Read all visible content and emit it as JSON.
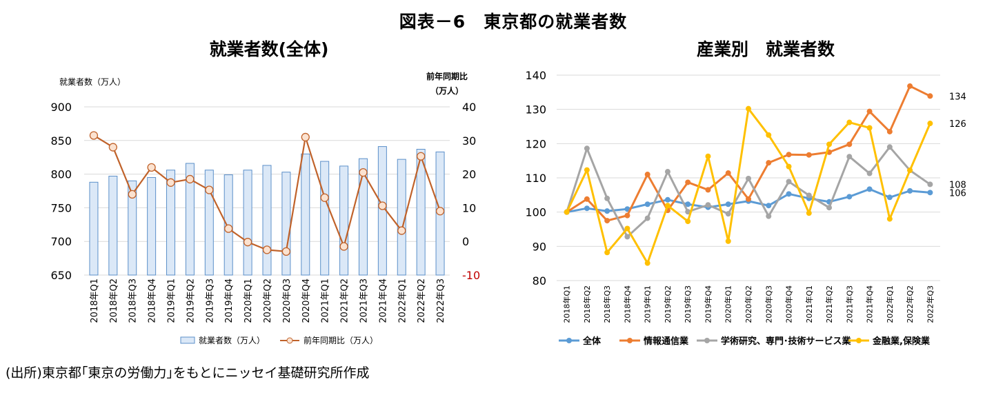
{
  "figure_title": "図表－6　東京都の就業者数",
  "source_note": "(出所)東京都｢東京の労働力｣をもとにニッセイ基礎研究所作成",
  "colors": {
    "bar_fill": "#dbe8f7",
    "bar_stroke": "#5b8fc9",
    "yoy_line": "#c0622a",
    "marker_fill": "#fbe2d0",
    "neg_tick": "#c00000",
    "zentai": "#5b9bd5",
    "joho": "#ed7d31",
    "gakujutsu": "#a5a5a5",
    "kinyu": "#ffc000"
  },
  "chart_data": [
    {
      "type": "bar",
      "title": "就業者数(全体)",
      "ylabel": "就業者数（万人）",
      "y2label_line1": "前年同期比",
      "y2label_line2": "（万人）",
      "categories": [
        "2018年Q1",
        "2018年Q2",
        "2018年Q3",
        "2018年Q4",
        "2019年Q1",
        "2019年Q2",
        "2019年Q3",
        "2019年Q4",
        "2020年Q1",
        "2020年Q2",
        "2020年Q3",
        "2020年Q4",
        "2021年Q1",
        "2021年Q2",
        "2021年Q3",
        "2021年Q4",
        "2022年Q1",
        "2022年Q2",
        "2022年Q3"
      ],
      "ylim": [
        650,
        900
      ],
      "yticks": [
        "650",
        "700",
        "750",
        "800",
        "850",
        "900"
      ],
      "y2lim": [
        -10,
        40
      ],
      "y2ticks": [
        "-10",
        "0",
        "10",
        "20",
        "30",
        "40"
      ],
      "grid": true,
      "legend": "bottom",
      "series": [
        {
          "name": "就業者数（万人）",
          "kind": "bar",
          "axis": "left",
          "values": [
            788,
            797,
            790,
            795,
            806,
            816,
            806,
            799,
            806,
            813,
            803,
            830,
            819,
            812,
            823,
            841,
            822,
            837,
            833
          ]
        },
        {
          "name": "前年同期比（万人）",
          "kind": "line",
          "axis": "right",
          "values": [
            31.5,
            28,
            14,
            22,
            17.5,
            18.5,
            15.3,
            3.8,
            -0.2,
            -2.5,
            -3,
            31,
            13,
            -1.5,
            20.5,
            10.6,
            3.2,
            25.3,
            9
          ]
        }
      ]
    },
    {
      "type": "line",
      "title": "産業別　就業者数",
      "categories": [
        "2018年Q1",
        "2018年Q2",
        "2018年Q3",
        "2018年Q4",
        "2019年Q1",
        "2019年Q2",
        "2019年Q3",
        "2019年Q4",
        "2020年Q1",
        "2020年Q2",
        "2020年Q3",
        "2020年Q4",
        "2021年Q1",
        "2021年Q2",
        "2021年Q3",
        "2021年Q4",
        "2022年Q1",
        "2022年Q2",
        "2022年Q3"
      ],
      "ylim": [
        80,
        140
      ],
      "yticks": [
        "80",
        "90",
        "100",
        "110",
        "120",
        "130",
        "140"
      ],
      "grid": true,
      "legend": "bottom",
      "end_labels": [
        "106",
        "134",
        "108",
        "126"
      ],
      "series": [
        {
          "name": "全体",
          "color_key": "zentai",
          "values": [
            100,
            101.1,
            100.3,
            100.9,
            102.3,
            103.6,
            102.3,
            101.4,
            102.3,
            103.2,
            101.9,
            105.3,
            104,
            103,
            104.5,
            106.7,
            104.3,
            106.2,
            105.7
          ]
        },
        {
          "name": "情報通信業",
          "color_key": "joho",
          "values": [
            100,
            103.8,
            97.5,
            99,
            111,
            100.5,
            108.7,
            106.5,
            111.4,
            103.8,
            114.4,
            116.8,
            116.7,
            117.5,
            119.8,
            129.4,
            123.5,
            136.8,
            133.9
          ]
        },
        {
          "name": "学術研究、専門･技術サービス業",
          "color_key": "gakujutsu",
          "values": [
            100,
            118.6,
            104,
            92.8,
            98.2,
            111.8,
            100.1,
            102.1,
            99.5,
            109.8,
            98.8,
            108.9,
            104.9,
            101.3,
            116.2,
            111.3,
            119,
            112.2,
            108.1
          ]
        },
        {
          "name": "金融業,保険業",
          "color_key": "kinyu",
          "values": [
            100,
            112.3,
            88.2,
            95.2,
            85.1,
            101.9,
            97.3,
            116.3,
            91.5,
            130.2,
            122.5,
            113.3,
            99.7,
            119.8,
            126.2,
            124.6,
            98,
            112.2,
            125.9
          ]
        }
      ]
    }
  ]
}
